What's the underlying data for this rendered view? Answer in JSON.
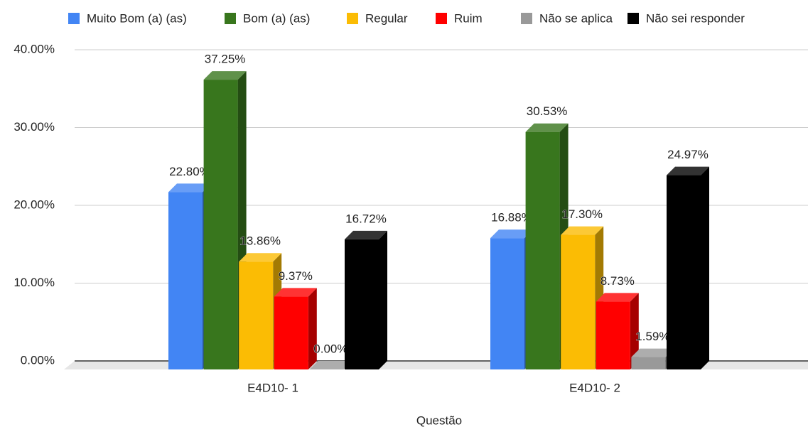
{
  "chart_data": {
    "type": "bar3d",
    "x_label": "Questão",
    "categories": [
      "E4D10- 1",
      "E4D10- 2"
    ],
    "series": [
      {
        "name": "Muito Bom (a) (as)",
        "color": "#4285f4",
        "values": [
          22.8,
          16.88
        ],
        "value_labels": [
          "22.80%",
          "16.88%"
        ]
      },
      {
        "name": "Bom (a) (as)",
        "color": "#38761d",
        "values": [
          37.25,
          30.53
        ],
        "value_labels": [
          "37.25%",
          "30.53%"
        ]
      },
      {
        "name": "Regular",
        "color": "#fbbc04",
        "values": [
          13.86,
          17.3
        ],
        "value_labels": [
          "13.86%",
          "17.30%"
        ]
      },
      {
        "name": "Ruim",
        "color": "#ff0000",
        "values": [
          9.37,
          8.73
        ],
        "value_labels": [
          "9.37%",
          "8.73%"
        ]
      },
      {
        "name": "Não se aplica",
        "color": "#999999",
        "values": [
          0.0,
          1.59
        ],
        "value_labels": [
          "0.00%",
          "1.59%"
        ]
      },
      {
        "name": "Não sei responder",
        "color": "#000000",
        "values": [
          16.72,
          24.97
        ],
        "value_labels": [
          "16.72%",
          "24.97%"
        ]
      }
    ],
    "ylim": [
      0,
      40
    ],
    "yticks": [
      {
        "value": 0,
        "label": "0.00%"
      },
      {
        "value": 10,
        "label": "10.00%"
      },
      {
        "value": 20,
        "label": "20.00%"
      },
      {
        "value": 30,
        "label": "30.00%"
      },
      {
        "value": 40,
        "label": "40.00%"
      }
    ],
    "grid": true,
    "legend": "top"
  }
}
